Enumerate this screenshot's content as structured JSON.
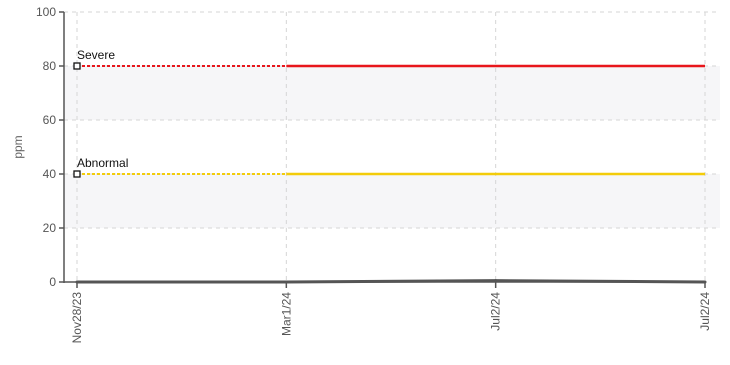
{
  "chart_data": {
    "type": "line",
    "ylabel": "ppm",
    "xlabel": "",
    "ylim": [
      0,
      100
    ],
    "yticks": [
      0,
      20,
      40,
      60,
      80,
      100
    ],
    "x_labels": [
      "Nov28/23",
      "Mar1/24",
      "Jul2/24",
      "Jul2/24"
    ],
    "series": [
      {
        "values": [
          0,
          0,
          0.5,
          0
        ],
        "color": "#555555"
      }
    ],
    "thresholds": [
      {
        "label": "Severe",
        "value": 80,
        "color": "#e8161b"
      },
      {
        "label": "Abnormal",
        "value": 40,
        "color": "#f3cc0a"
      }
    ],
    "band_color": "#f6f6f8",
    "grid": true
  }
}
